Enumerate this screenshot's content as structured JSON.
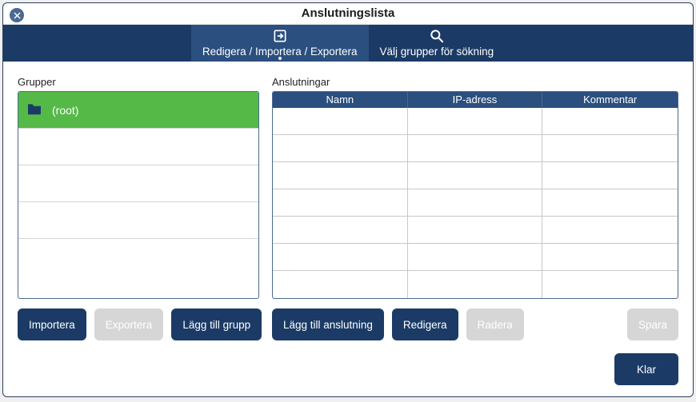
{
  "window": {
    "title": "Anslutningslista"
  },
  "tabs": {
    "edit": {
      "label": "Redigera / Importera / Exportera",
      "active": true
    },
    "search": {
      "label": "Välj grupper för sökning",
      "active": false
    }
  },
  "groups": {
    "label": "Grupper",
    "items": [
      {
        "label": "(root)",
        "selected": true
      }
    ],
    "empty_rows": 4,
    "selected_bg": "#55b948",
    "folder_icon_color": "#1b3b66"
  },
  "connections": {
    "label": "Anslutningar",
    "columns": [
      "Namn",
      "IP-adress",
      "Kommentar"
    ],
    "rows": [],
    "empty_rows": 7,
    "header_bg": "#2b4f7e"
  },
  "buttons": {
    "import": "Importera",
    "export": "Exportera",
    "add_group": "Lägg till grupp",
    "add_conn": "Lägg till anslutning",
    "edit": "Redigera",
    "delete": "Radera",
    "save": "Spara",
    "done": "Klar"
  },
  "colors": {
    "navbar_bg": "#1b3b66",
    "tab_active_bg": "#2b4f7e",
    "border": "#4a6a91",
    "btn_primary_bg": "#1b3b66",
    "btn_disabled_bg": "#d6d6d6"
  }
}
